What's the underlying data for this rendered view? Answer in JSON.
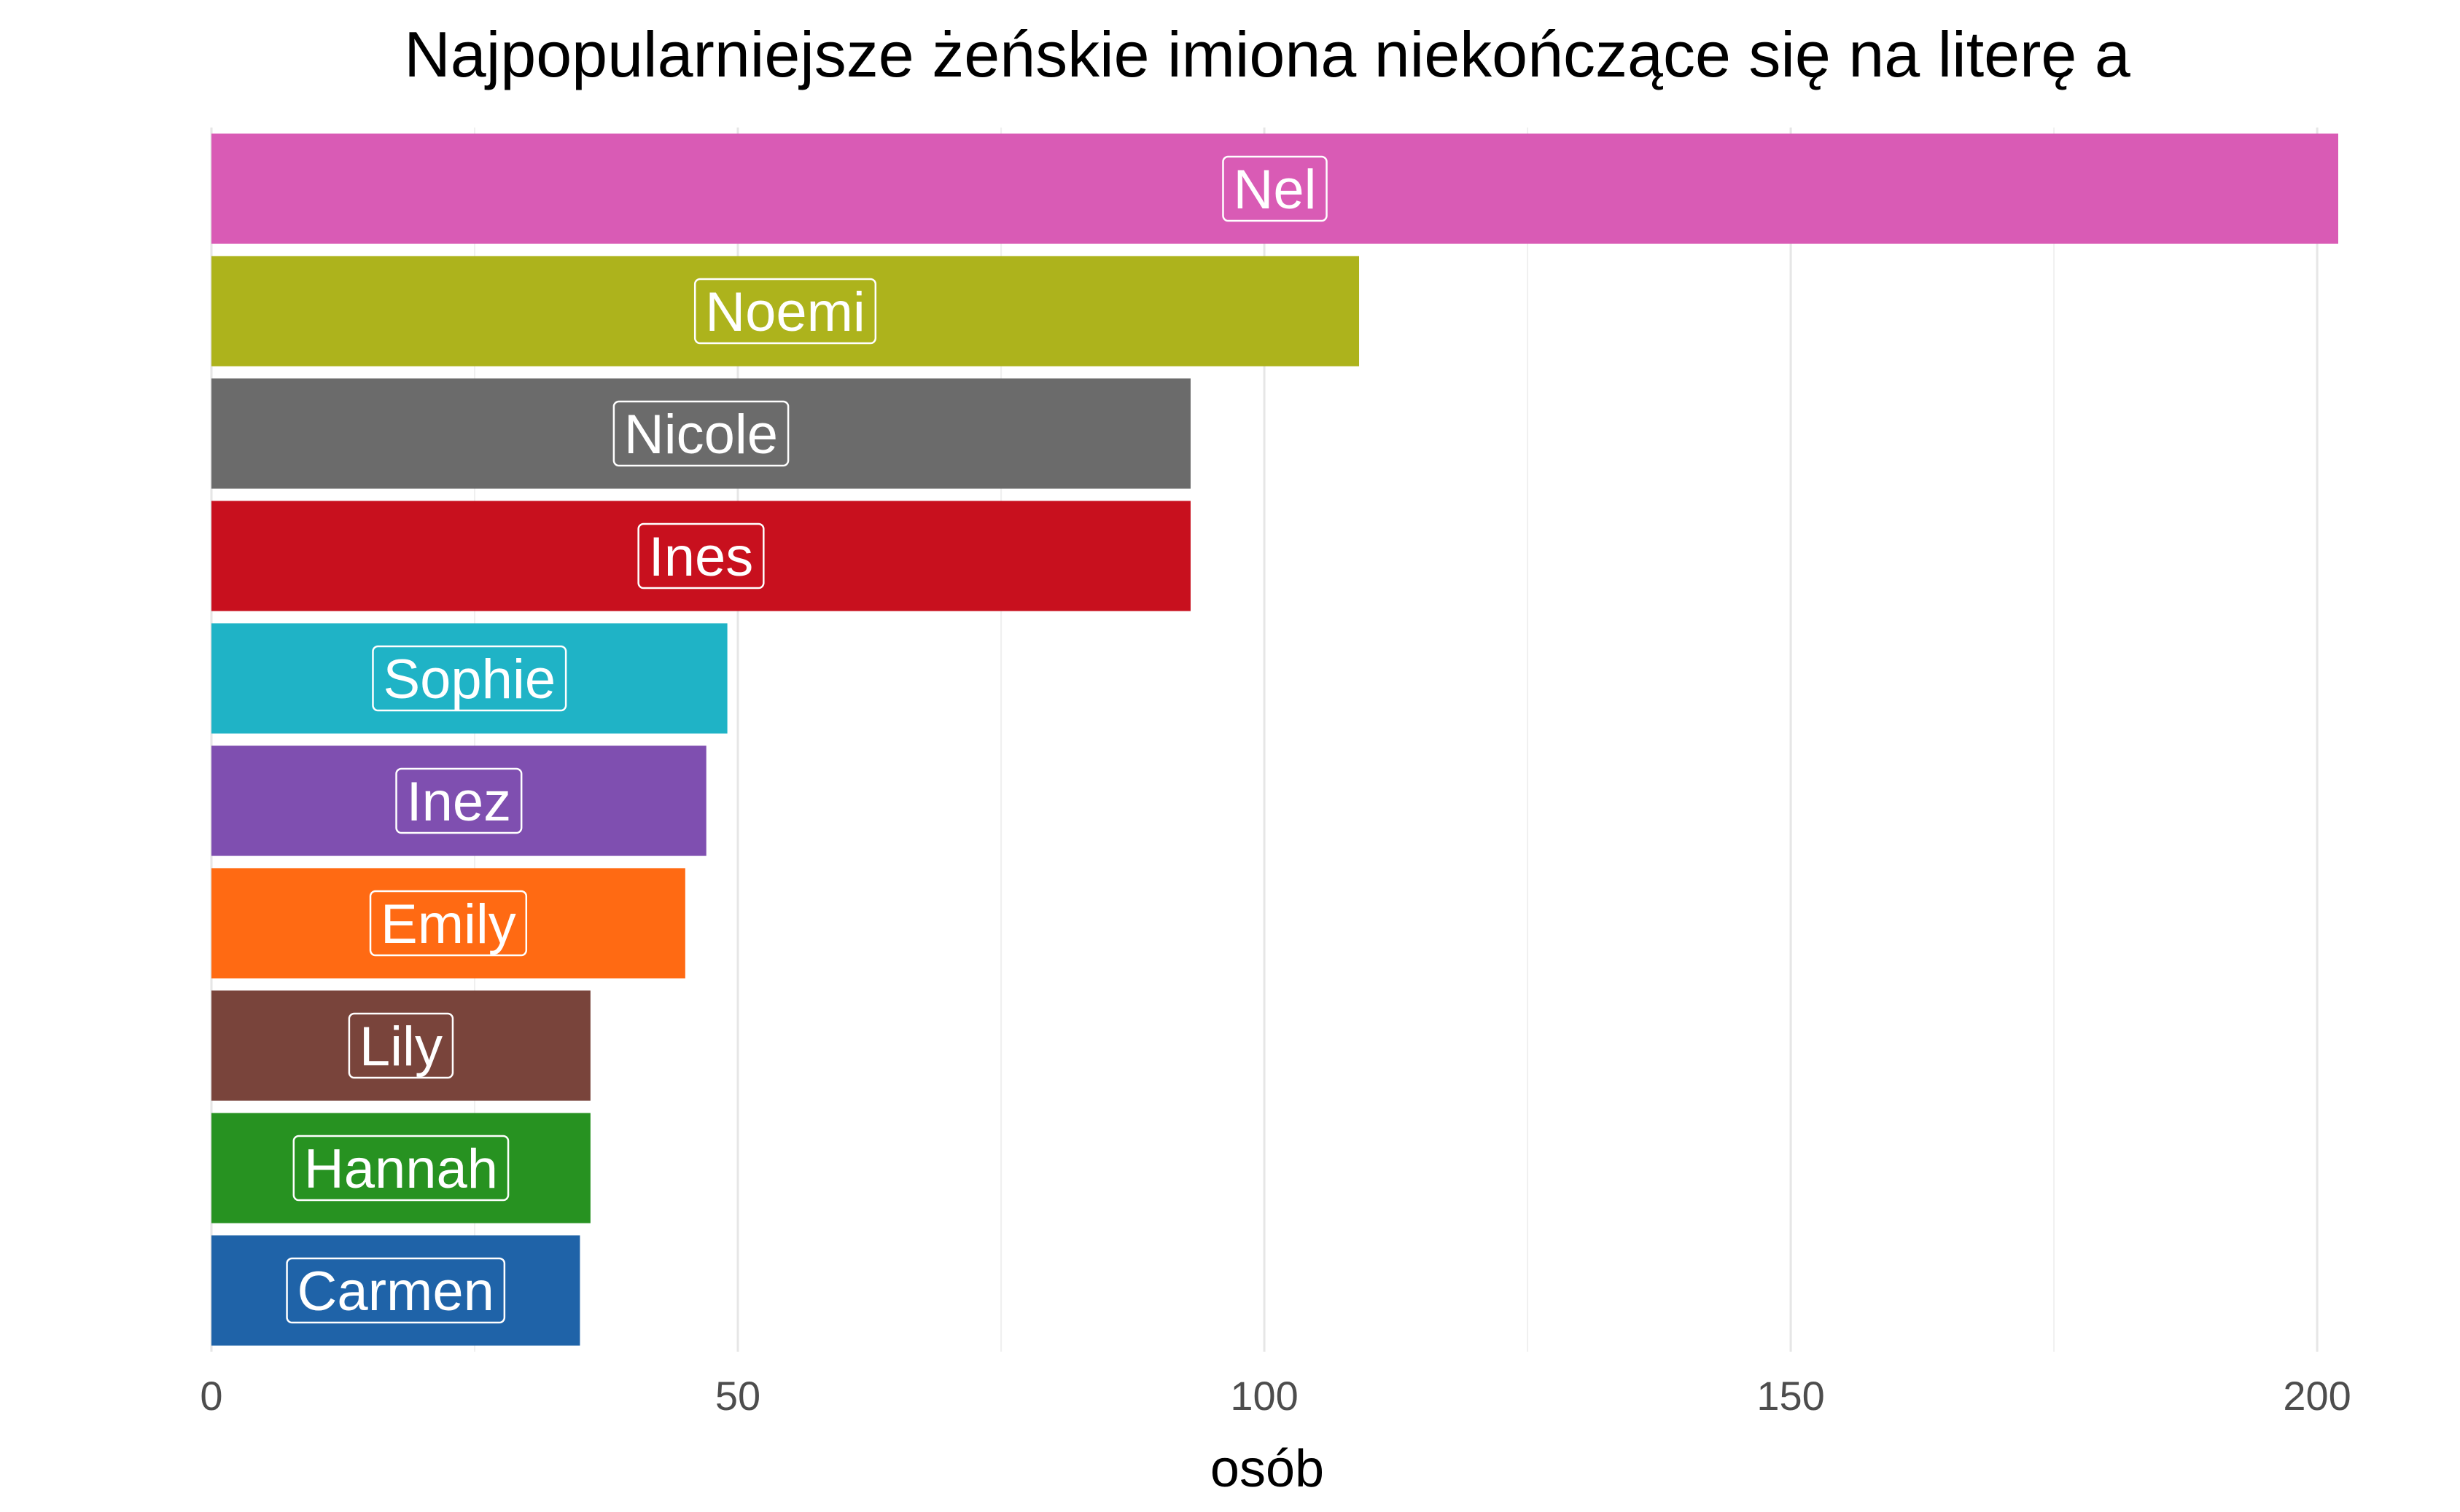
{
  "chart_data": {
    "type": "bar",
    "orientation": "horizontal",
    "title": "Najpopularniejsze żeńskie imiona niekończące się na literę a",
    "xlabel": "osób",
    "ylabel": "",
    "xlim": [
      0,
      202
    ],
    "x_ticks": [
      0,
      50,
      100,
      150,
      200
    ],
    "grid": true,
    "legend": "none",
    "categories": [
      "Nel",
      "Noemi",
      "Nicole",
      "Ines",
      "Sophie",
      "Inez",
      "Emily",
      "Lily",
      "Hannah",
      "Carmen"
    ],
    "values": [
      202,
      109,
      93,
      93,
      49,
      47,
      45,
      36,
      36,
      35
    ],
    "colors": [
      "#d95bb5",
      "#adb31c",
      "#6b6b6b",
      "#c8101e",
      "#1fb3c6",
      "#7f4fb0",
      "#ff6a13",
      "#79443b",
      "#279221",
      "#1f63a8"
    ]
  }
}
